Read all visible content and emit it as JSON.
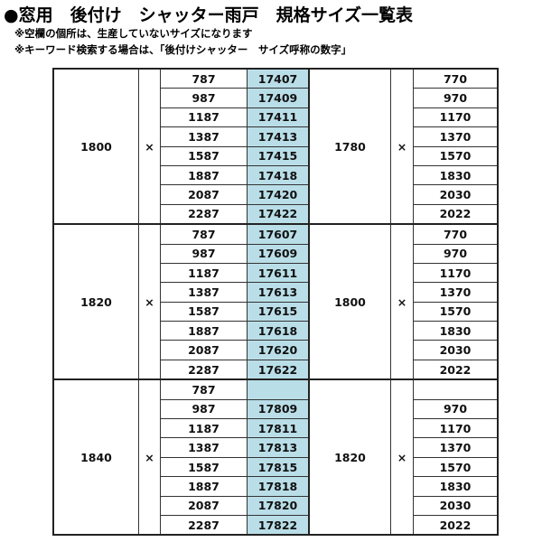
{
  "title": "●窓用　後付け　シャッター雨戸　規格サイズ一覧表",
  "notes": [
    "※空欄の個所は、生産していないサイズになります",
    "※キーワード検索する場合は、「後付けシャッター　サイズ呼称の数字」"
  ],
  "multiply_sign": "×",
  "accent_color": "#b9dee8",
  "groups": [
    {
      "width": "1800",
      "height": "1780",
      "rows": [
        {
          "w": "787",
          "code": "17407",
          "h": "770"
        },
        {
          "w": "987",
          "code": "17409",
          "h": "970"
        },
        {
          "w": "1187",
          "code": "17411",
          "h": "1170"
        },
        {
          "w": "1387",
          "code": "17413",
          "h": "1370"
        },
        {
          "w": "1587",
          "code": "17415",
          "h": "1570"
        },
        {
          "w": "1887",
          "code": "17418",
          "h": "1830"
        },
        {
          "w": "2087",
          "code": "17420",
          "h": "2030"
        },
        {
          "w": "2287",
          "code": "17422",
          "h": "2022"
        }
      ]
    },
    {
      "width": "1820",
      "height": "1800",
      "rows": [
        {
          "w": "787",
          "code": "17607",
          "h": "770"
        },
        {
          "w": "987",
          "code": "17609",
          "h": "970"
        },
        {
          "w": "1187",
          "code": "17611",
          "h": "1170"
        },
        {
          "w": "1387",
          "code": "17613",
          "h": "1370"
        },
        {
          "w": "1587",
          "code": "17615",
          "h": "1570"
        },
        {
          "w": "1887",
          "code": "17618",
          "h": "1830"
        },
        {
          "w": "2087",
          "code": "17620",
          "h": "2030"
        },
        {
          "w": "2287",
          "code": "17622",
          "h": "2022"
        }
      ]
    },
    {
      "width": "1840",
      "height": "1820",
      "rows": [
        {
          "w": "787",
          "code": "",
          "h": ""
        },
        {
          "w": "987",
          "code": "17809",
          "h": "970"
        },
        {
          "w": "1187",
          "code": "17811",
          "h": "1170"
        },
        {
          "w": "1387",
          "code": "17813",
          "h": "1370"
        },
        {
          "w": "1587",
          "code": "17815",
          "h": "1570"
        },
        {
          "w": "1887",
          "code": "17818",
          "h": "1830"
        },
        {
          "w": "2087",
          "code": "17820",
          "h": "2030"
        },
        {
          "w": "2287",
          "code": "17822",
          "h": "2022"
        }
      ]
    }
  ]
}
